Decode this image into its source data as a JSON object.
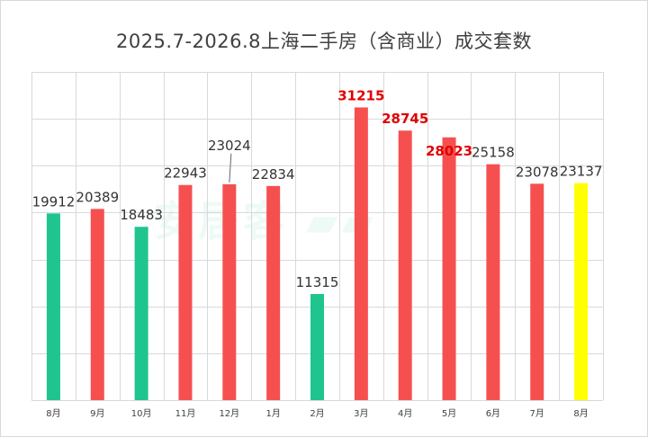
{
  "chart_data": {
    "type": "bar",
    "title": "2025.7-2026.8上海二手房（含商业）成交套数",
    "categories": [
      "8月",
      "9月",
      "10月",
      "11月",
      "12月",
      "1月",
      "2月",
      "3月",
      "4月",
      "5月",
      "6月",
      "7月",
      "8月"
    ],
    "values": [
      19912,
      20389,
      18483,
      22943,
      23024,
      22834,
      11315,
      31215,
      28745,
      28023,
      25158,
      23078,
      23137
    ],
    "bar_colors": [
      "#1fc48f",
      "#f5504f",
      "#1fc48f",
      "#f5504f",
      "#f5504f",
      "#f5504f",
      "#1fc48f",
      "#f5504f",
      "#f5504f",
      "#f5504f",
      "#f5504f",
      "#f5504f",
      "#ffff00"
    ],
    "label_colors": [
      "#333333",
      "#333333",
      "#333333",
      "#333333",
      "#333333",
      "#333333",
      "#333333",
      "#e00000",
      "#e00000",
      "#e00000",
      "#333333",
      "#333333",
      "#333333"
    ],
    "label_bold": [
      false,
      false,
      false,
      false,
      false,
      false,
      false,
      true,
      true,
      true,
      false,
      false,
      false
    ],
    "ylim": [
      0,
      35000
    ],
    "grid": true,
    "legend": "none",
    "xlabel": "",
    "ylabel": ""
  }
}
